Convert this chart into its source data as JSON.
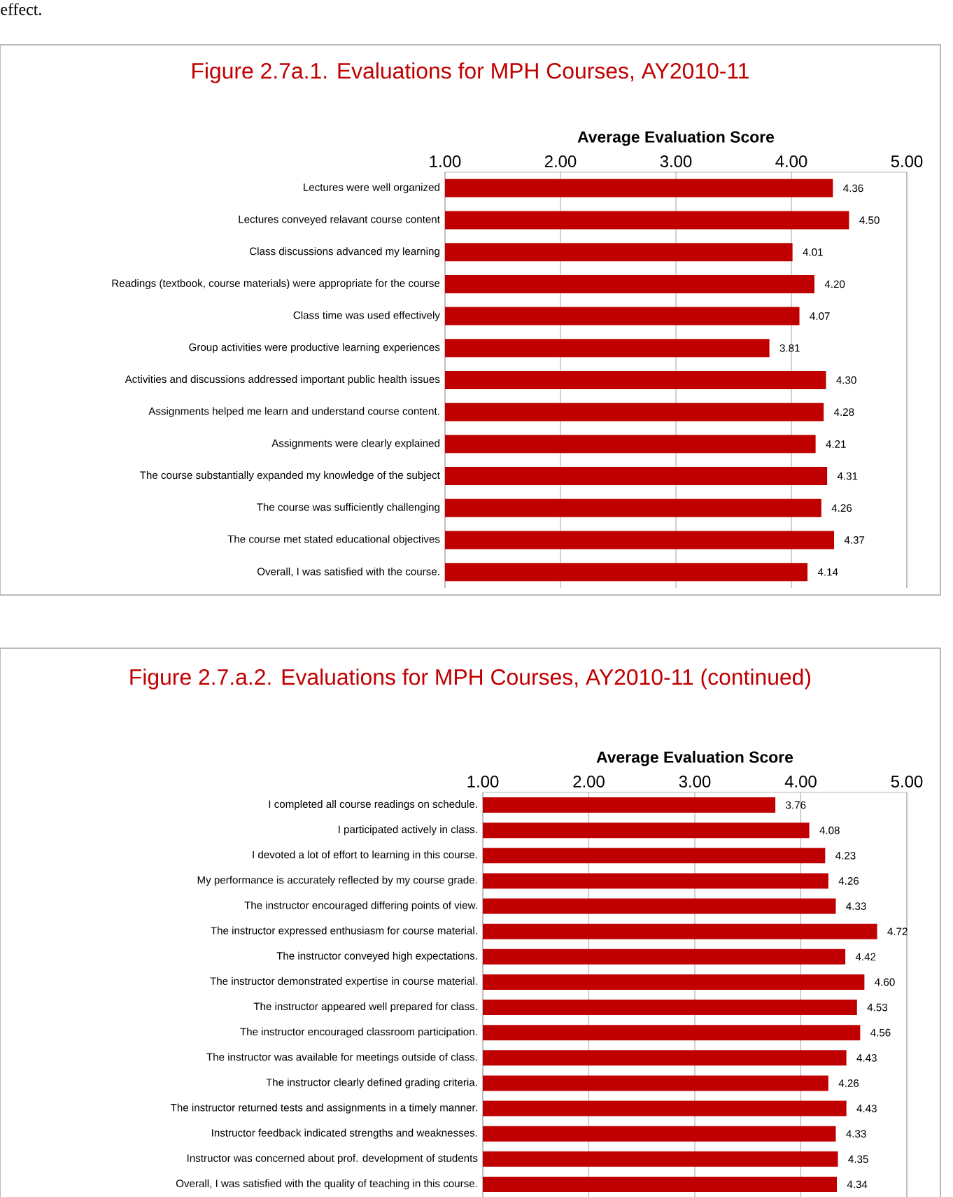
{
  "chart_data": [
    {
      "type": "bar",
      "orientation": "horizontal",
      "title": "Figure 2.7a.1. Evaluations for MPH Courses, AY2010-11",
      "xlabel": "Average Evaluation Score",
      "annotations": [
        "effect."
      ],
      "categories": [
        "Lectures were well organized",
        "Lectures conveyed relavant course content",
        "Class discussions advanced my learning",
        "Readings (textbook, course materials) were appropriate for the course",
        "Class time was used effectively",
        "Group activities were productive learning experiences",
        "Activities and discussions addressed important public health issues",
        "Assignments helped me learn and understand course content.",
        "Assignments were clearly explained",
        "The course substantially expanded my knowledge of the subject",
        "The course was sufficiently challenging",
        "The course met stated educational objectives",
        "Overall, I was satisfied with the course."
      ],
      "values": [
        4.36,
        4.5,
        4.01,
        4.2,
        4.07,
        3.81,
        4.3,
        4.28,
        4.21,
        4.31,
        4.26,
        4.37,
        4.14
      ],
      "value_labels": [
        "4.36",
        "4.50",
        "4.01",
        "4.20",
        "4.07",
        "3.81",
        "4.30",
        "4.28",
        "4.21",
        "4.31",
        "4.26",
        "4.37",
        "4.14"
      ],
      "color": "#c00000",
      "xlim": [
        1,
        5
      ],
      "xticks": [
        {
          "value": 1,
          "label": "1.00"
        },
        {
          "value": 2,
          "label": "2.00"
        },
        {
          "value": 3,
          "label": "3.00"
        },
        {
          "value": 4,
          "label": "4.00"
        },
        {
          "value": 5,
          "label": "5.00"
        }
      ],
      "grid": "x"
    },
    {
      "type": "bar",
      "orientation": "horizontal",
      "title": "Figure 2.7.a.2. Evaluations for MPH Courses, AY2010-11 (continued)",
      "xlabel": "Average Evaluation Score",
      "categories": [
        "I completed all course readings on schedule.",
        "I participated actively in class.",
        "I devoted a lot of effort to learning in this course.",
        "My performance is accurately reflected by my course grade.",
        "The instructor encouraged differing points of view.",
        "The instructor expressed enthusiasm for course material.",
        "The instructor conveyed high expectations.",
        "The instructor demonstrated expertise in course material.",
        "The instructor appeared well prepared for class.",
        "The instructor encouraged classroom participation.",
        "The instructor was available for meetings outside of class.",
        "The instructor clearly defined grading criteria.",
        "The instructor returned tests and assignments in a timely manner.",
        "Instructor feedback indicated strengths and weaknesses.",
        "Instructor was concerned about prof. development of students",
        "Overall, I was satisfied with the quality of teaching in this course."
      ],
      "values": [
        3.76,
        4.08,
        4.23,
        4.26,
        4.33,
        4.72,
        4.42,
        4.6,
        4.53,
        4.56,
        4.43,
        4.26,
        4.43,
        4.33,
        4.35,
        4.34
      ],
      "value_labels": [
        "3.76",
        "4.08",
        "4.23",
        "4.26",
        "4.33",
        "4.72",
        "4.42",
        "4.60",
        "4.53",
        "4.56",
        "4.43",
        "4.26",
        "4.43",
        "4.33",
        "4.35",
        "4.34"
      ],
      "color": "#c00000",
      "xlim": [
        1,
        5
      ],
      "xticks": [
        {
          "value": 1,
          "label": "1.00"
        },
        {
          "value": 2,
          "label": "2.00"
        },
        {
          "value": 3,
          "label": "3.00"
        },
        {
          "value": 4,
          "label": "4.00"
        },
        {
          "value": 5,
          "label": "5.00"
        }
      ],
      "grid": "x"
    }
  ]
}
